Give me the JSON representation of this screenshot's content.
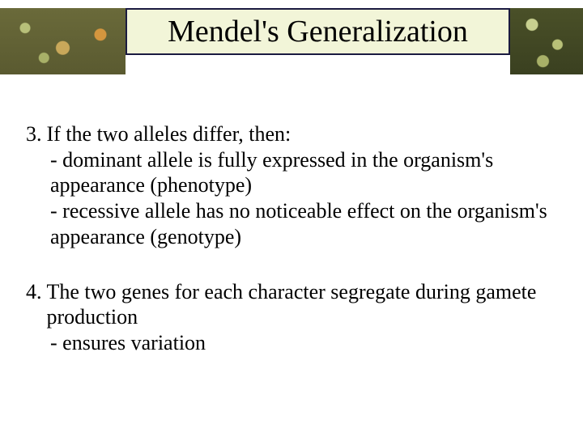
{
  "slide": {
    "title": "Mendel's Generalization",
    "title_fontsize": 38,
    "title_box_bg": "#f2f5d8",
    "title_box_border": "#1a1a40",
    "body_fontsize": 26,
    "font_family": "Times New Roman",
    "text_color": "#000000",
    "background_color": "#ffffff",
    "banner": {
      "height": 82,
      "left_image_width": 155,
      "right_image_width": 90,
      "left_bg_color": "#5a5a30",
      "right_bg_color": "#3a4020"
    },
    "items": [
      {
        "number": "3.",
        "lead": "If the two alleles differ, then:",
        "subs": [
          "- dominant allele is fully expressed in the organism's appearance (phenotype)",
          "- recessive allele has no noticeable effect on the organism's appearance (genotype)"
        ]
      },
      {
        "number": "4.",
        "lead": "The two genes for each character segregate during gamete production",
        "subs": [
          "- ensures variation"
        ]
      }
    ]
  }
}
